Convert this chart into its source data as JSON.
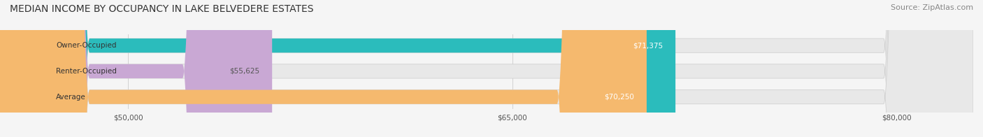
{
  "title": "MEDIAN INCOME BY OCCUPANCY IN LAKE BELVEDERE ESTATES",
  "source": "Source: ZipAtlas.com",
  "categories": [
    "Owner-Occupied",
    "Renter-Occupied",
    "Average"
  ],
  "values": [
    71375,
    55625,
    70250
  ],
  "bar_colors": [
    "#2bbcbc",
    "#c9a8d4",
    "#f5b96e"
  ],
  "label_color_inside": [
    "#ffffff",
    "#555555",
    "#ffffff"
  ],
  "value_labels": [
    "$71,375",
    "$55,625",
    "$70,250"
  ],
  "xmin": 45000,
  "xmax": 83000,
  "xticks": [
    50000,
    65000,
    80000
  ],
  "xtick_labels": [
    "$50,000",
    "$65,000",
    "$80,000"
  ],
  "background_color": "#f5f5f5",
  "bar_background_color": "#e8e8e8",
  "title_fontsize": 10,
  "source_fontsize": 8,
  "bar_height": 0.55,
  "figsize": [
    14.06,
    1.96
  ],
  "dpi": 100
}
